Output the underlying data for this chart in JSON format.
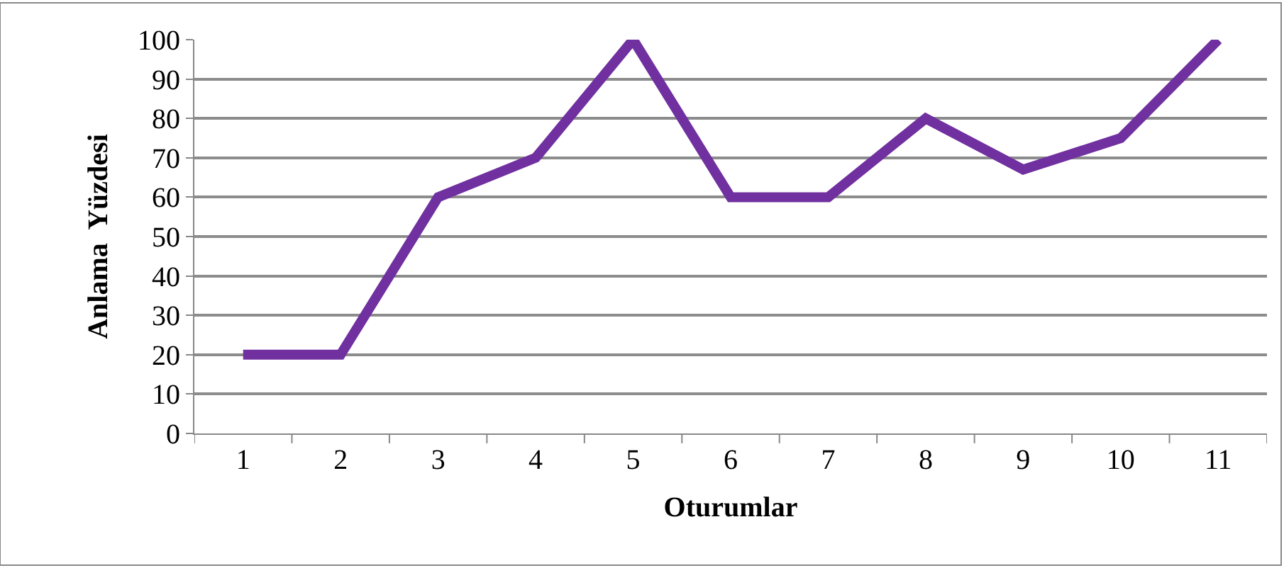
{
  "chart_data": {
    "type": "line",
    "xlabel": "Oturumlar",
    "ylabel": "Anlama  Yüzdesi",
    "categories": [
      "1",
      "2",
      "3",
      "4",
      "5",
      "6",
      "7",
      "8",
      "9",
      "10",
      "11"
    ],
    "series": [
      {
        "color": "#7030a0",
        "values": [
          20,
          20,
          60,
          70,
          100,
          60,
          60,
          80,
          67,
          75,
          100
        ]
      }
    ],
    "ylim": [
      0,
      100
    ],
    "yticks": [
      0,
      10,
      20,
      30,
      40,
      50,
      60,
      70,
      80,
      90,
      100
    ],
    "grid": "y",
    "marker": "none",
    "line_style": "solid"
  }
}
